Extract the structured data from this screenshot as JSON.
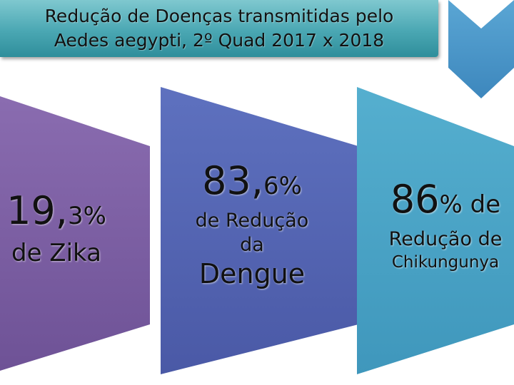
{
  "title": {
    "line1": "Redução de Doenças transmitidas pelo",
    "line2": "Aedes aegypti, 2º Quad 2017 x 2018"
  },
  "colors": {
    "panel_zika": "#7b5ea1",
    "panel_dengue": "#5465b3",
    "panel_chik": "#4ba3c5",
    "title_bg": "#4aa7b3",
    "chevron": "#4a97c9"
  },
  "panels": [
    {
      "number_int": "19,",
      "number_dec": "3%",
      "label1": "de Zika"
    },
    {
      "number_int": "83,",
      "number_dec": "6%",
      "label1": "de Redução",
      "label2": "da",
      "label3": "Dengue"
    },
    {
      "number_int": "86",
      "number_dec": "% de",
      "label1": "Redução de",
      "label2": "Chikungunya"
    }
  ]
}
